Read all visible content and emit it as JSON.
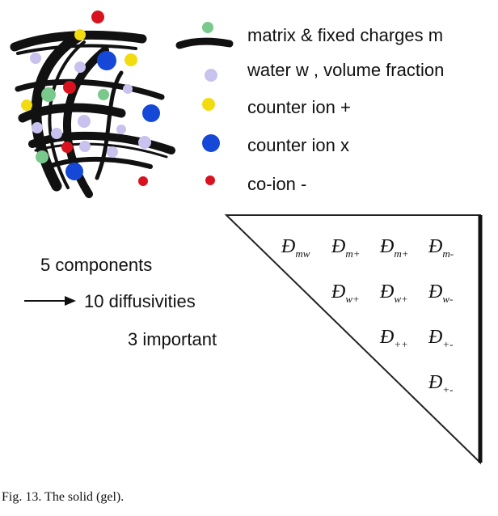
{
  "legend": [
    {
      "label": "matrix & fixed charges m",
      "marker": "matrix-stroke",
      "color": "#111111"
    },
    {
      "label": "water w , volume fraction",
      "marker": "circle-small",
      "color": "#c8c2ee"
    },
    {
      "label": "counter ion +",
      "marker": "circle-small",
      "color": "#f2dc10"
    },
    {
      "label": "counter ion x",
      "marker": "circle-large",
      "color": "#1548d6"
    },
    {
      "label": "co-ion -",
      "marker": "circle-small",
      "color": "#d8131f"
    }
  ],
  "left_text": {
    "components": "5 components",
    "diffusivities": "10 diffusivities",
    "important": "3 important"
  },
  "matrix": {
    "symbol": "Đ",
    "rows": [
      [
        "mw",
        "m+",
        "m+",
        "m-"
      ],
      [
        "w+",
        "w+",
        "w-"
      ],
      [
        "++",
        "+-"
      ],
      [
        "+-"
      ]
    ]
  },
  "caption": "Fig. 13. The solid (gel).",
  "colors": {
    "matrix": "#111111",
    "water": "#c8c2ee",
    "counter_plus": "#f2dc10",
    "counter_x": "#1548d6",
    "co_ion": "#d8131f",
    "ring": "#79c98c"
  }
}
